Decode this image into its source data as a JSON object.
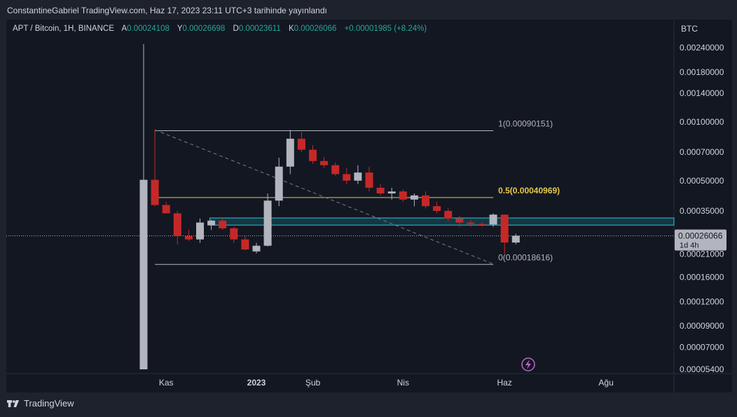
{
  "header": {
    "published": "ConstantineGabriel TradingView.com, Haz 17, 2023 23:11 UTC+3 tarihinde yayınlandı"
  },
  "legend": {
    "symbol": "APT / Bitcoin, 1H, BINANCE",
    "open_label": "A",
    "open": "0.00024108",
    "high_label": "Y",
    "high": "0.00026698",
    "low_label": "D",
    "low": "0.00023611",
    "close_label": "K",
    "close": "0.00026066",
    "change": "+0.00001985 (+8.24%)"
  },
  "footer": {
    "brand": "TradingView"
  },
  "colors": {
    "up": "#b2b5be",
    "down": "#c62828",
    "fib_mid": "#e6c84a",
    "zone": "#26c6da",
    "price_tag": "#b2b5be"
  },
  "chart_data": {
    "type": "candlestick",
    "scale": "log",
    "currency": "BTC",
    "y_ticks": [
      "0.00240000",
      "0.00180000",
      "0.00140000",
      "0.00100000",
      "0.00070000",
      "0.00050000",
      "0.00035000",
      "0.00026066",
      "0.00021000",
      "0.00016000",
      "0.00012000",
      "0.00009000",
      "0.00007000",
      "0.00005400"
    ],
    "y_tick_values": [
      0.0024,
      0.0018,
      0.0014,
      0.001,
      0.0007,
      0.0005,
      0.00035,
      0.00026066,
      0.00021,
      0.00016,
      0.00012,
      9e-05,
      7e-05,
      5.4e-05
    ],
    "x_ticks": [
      {
        "label": "Kas",
        "index": 2
      },
      {
        "label": "2023",
        "index": 10
      },
      {
        "label": "Şub",
        "index": 15
      },
      {
        "label": "Nis",
        "index": 23
      },
      {
        "label": "Haz",
        "index": 32
      },
      {
        "label": "Ağu",
        "index": 41
      }
    ],
    "candles": [
      {
        "o": 5.4e-05,
        "h": 0.0025,
        "l": 5.4e-05,
        "c": 0.000505
      },
      {
        "o": 0.000505,
        "h": 0.00091,
        "l": 0.00037,
        "c": 0.000375
      },
      {
        "o": 0.000375,
        "h": 0.00039,
        "l": 0.00034,
        "c": 0.00034
      },
      {
        "o": 0.00034,
        "h": 0.00035,
        "l": 0.000235,
        "c": 0.00026
      },
      {
        "o": 0.00026,
        "h": 0.00028,
        "l": 0.000245,
        "c": 0.00025
      },
      {
        "o": 0.00025,
        "h": 0.00032,
        "l": 0.00024,
        "c": 0.000305
      },
      {
        "o": 0.000295,
        "h": 0.000315,
        "l": 0.00028,
        "c": 0.000312
      },
      {
        "o": 0.000312,
        "h": 0.00032,
        "l": 0.00028,
        "c": 0.000285
      },
      {
        "o": 0.000285,
        "h": 0.00029,
        "l": 0.00024,
        "c": 0.00025
      },
      {
        "o": 0.00025,
        "h": 0.00026,
        "l": 0.00022,
        "c": 0.000222
      },
      {
        "o": 0.000217,
        "h": 0.00024,
        "l": 0.000212,
        "c": 0.000232
      },
      {
        "o": 0.000232,
        "h": 0.00043,
        "l": 0.00023,
        "c": 0.000395
      },
      {
        "o": 0.000395,
        "h": 0.000655,
        "l": 0.00037,
        "c": 0.00059
      },
      {
        "o": 0.00059,
        "h": 0.00091,
        "l": 0.00054,
        "c": 0.00082
      },
      {
        "o": 0.00082,
        "h": 0.00089,
        "l": 0.0007,
        "c": 0.00072
      },
      {
        "o": 0.00072,
        "h": 0.00076,
        "l": 0.00061,
        "c": 0.00063
      },
      {
        "o": 0.00063,
        "h": 0.00066,
        "l": 0.00058,
        "c": 0.0006
      },
      {
        "o": 0.0006,
        "h": 0.00062,
        "l": 0.00053,
        "c": 0.00054
      },
      {
        "o": 0.00054,
        "h": 0.00058,
        "l": 0.00048,
        "c": 0.0005
      },
      {
        "o": 0.0005,
        "h": 0.0006,
        "l": 0.00048,
        "c": 0.00055
      },
      {
        "o": 0.00055,
        "h": 0.00059,
        "l": 0.00044,
        "c": 0.00046
      },
      {
        "o": 0.00046,
        "h": 0.00048,
        "l": 0.00042,
        "c": 0.00043
      },
      {
        "o": 0.00043,
        "h": 0.00046,
        "l": 0.0004,
        "c": 0.00044
      },
      {
        "o": 0.00044,
        "h": 0.00045,
        "l": 0.00039,
        "c": 0.0004
      },
      {
        "o": 0.0004,
        "h": 0.00043,
        "l": 0.00037,
        "c": 0.00042
      },
      {
        "o": 0.00042,
        "h": 0.00044,
        "l": 0.00036,
        "c": 0.00037
      },
      {
        "o": 0.00037,
        "h": 0.00039,
        "l": 0.00034,
        "c": 0.00035
      },
      {
        "o": 0.00035,
        "h": 0.00036,
        "l": 0.00031,
        "c": 0.00032
      },
      {
        "o": 0.00032,
        "h": 0.00033,
        "l": 0.00029,
        "c": 0.000305
      },
      {
        "o": 0.000305,
        "h": 0.000315,
        "l": 0.00029,
        "c": 0.0003
      },
      {
        "o": 0.0003,
        "h": 0.000305,
        "l": 0.00029,
        "c": 0.000298
      },
      {
        "o": 0.000298,
        "h": 0.00034,
        "l": 0.00029,
        "c": 0.000335
      },
      {
        "o": 0.000335,
        "h": 0.000335,
        "l": 0.00021,
        "c": 0.000241
      },
      {
        "o": 0.000241,
        "h": 0.000267,
        "l": 0.000236,
        "c": 0.000261
      }
    ],
    "fib": {
      "levels": [
        {
          "label": "1(0.00090151)",
          "value": 0.00090151
        },
        {
          "label": "0.5(0.00040969)",
          "value": 0.00040969
        },
        {
          "label": "0(0.00018616)",
          "value": 0.00018616
        }
      ],
      "start_index": 1,
      "end_index": 31
    },
    "zone": {
      "top": 0.000322,
      "bottom": 0.000296,
      "start_index": 6
    },
    "trend_line": {
      "from": {
        "index": 1,
        "value": 0.00091
      },
      "to": {
        "index": 31,
        "value": 0.000187
      }
    },
    "last_price": {
      "value": 0.00026066,
      "label": "0.00026066",
      "countdown": "1d 4h"
    }
  }
}
